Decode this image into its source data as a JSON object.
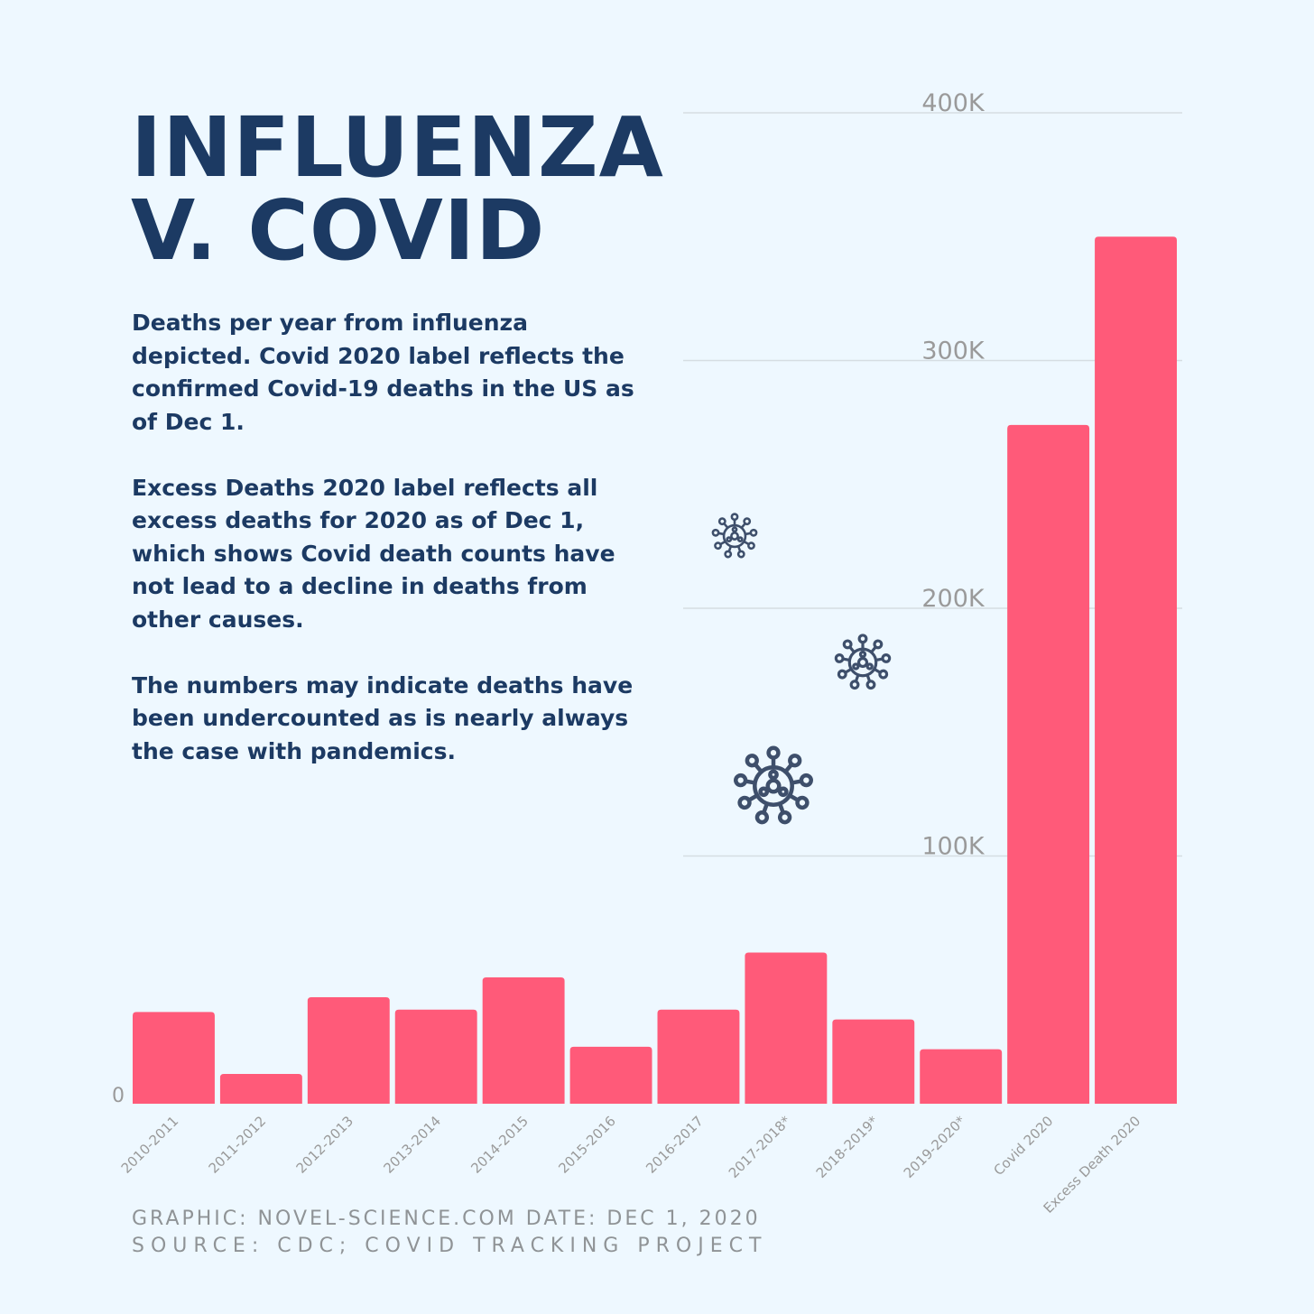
{
  "title": {
    "line1": "INFLUENZA",
    "line2": "V. COVID"
  },
  "description": [
    "Deaths per year from influenza depicted. Covid 2020 label reflects the confirmed Covid-19 deaths in the US as of Dec 1.",
    "Excess Deaths 2020 label reflects all excess deaths for 2020 as of Dec 1, which shows Covid death counts have not lead to a decline in deaths from other causes.",
    "The numbers may indicate deaths have been undercounted as is nearly always the case with pandemics."
  ],
  "footer": {
    "line1": "GRAPHIC:  NOVEL-SCIENCE.COM DATE: DEC 1, 2020",
    "line2": "SOURCE: CDC; COVID TRACKING PROJECT"
  },
  "colors": {
    "bar": "#ff5a79",
    "title": "#1c3a63",
    "grid": "#d5dde2",
    "tick": "#9a9a9a",
    "background": "#eef8ff"
  },
  "icons": [
    "virus-icon",
    "virus-icon",
    "virus-icon"
  ],
  "chart_data": {
    "type": "bar",
    "categories": [
      "2010-2011",
      "2011-2012",
      "2012-2013",
      "2013-2014",
      "2014-2015",
      "2015-2016",
      "2016-2017",
      "2017-2018*",
      "2018-2019*",
      "2019-2020*",
      "Covid 2020",
      "Excess Death 2020"
    ],
    "values": [
      37000,
      12000,
      43000,
      38000,
      51000,
      23000,
      38000,
      61000,
      34000,
      22000,
      274000,
      350000
    ],
    "yticks": [
      0,
      100000,
      200000,
      300000,
      400000
    ],
    "ytick_labels": [
      "0",
      "100K",
      "200K",
      "300K",
      "400K"
    ],
    "ylim": [
      0,
      400000
    ],
    "grid": true,
    "title": "",
    "xlabel": "",
    "ylabel": ""
  }
}
